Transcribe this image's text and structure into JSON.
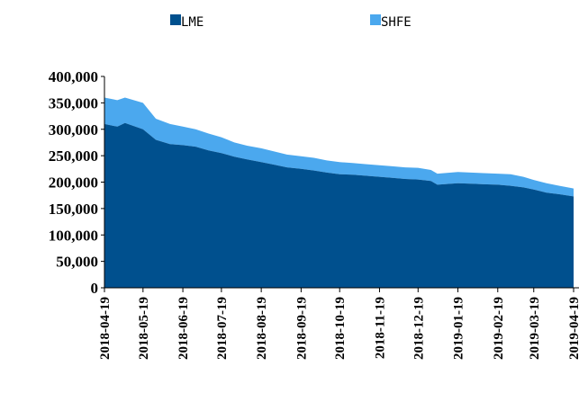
{
  "chart_data": {
    "type": "area",
    "stacked": true,
    "colors": {
      "LME": "#00508E",
      "SHFE": "#4BA8EE"
    },
    "legend": {
      "placement": "top",
      "items": [
        "LME",
        "SHFE"
      ]
    },
    "ylim": [
      0,
      400000
    ],
    "yticks": [
      "0",
      "50,000",
      "100,000",
      "150,000",
      "200,000",
      "250,000",
      "300,000",
      "350,000",
      "400,000"
    ],
    "xlim": [
      "2018-04-19",
      "2019-04-19"
    ],
    "xticks": [
      "2018-04-19",
      "2018-05-19",
      "2018-06-19",
      "2018-07-19",
      "2018-08-19",
      "2018-09-19",
      "2018-10-19",
      "2018-11-19",
      "2018-12-19",
      "2019-01-19",
      "2019-02-19",
      "2019-03-19",
      "2019-04-19"
    ],
    "grid": false,
    "x": [
      "2018-04-19",
      "2018-04-29",
      "2018-05-05",
      "2018-05-19",
      "2018-05-29",
      "2018-06-09",
      "2018-06-19",
      "2018-06-29",
      "2018-07-09",
      "2018-07-19",
      "2018-07-29",
      "2018-08-08",
      "2018-08-19",
      "2018-08-29",
      "2018-09-08",
      "2018-09-19",
      "2018-09-29",
      "2018-10-09",
      "2018-10-19",
      "2018-10-29",
      "2018-11-08",
      "2018-11-19",
      "2018-11-29",
      "2018-12-09",
      "2018-12-19",
      "2018-12-29",
      "2019-01-03",
      "2019-01-19",
      "2019-01-29",
      "2019-02-08",
      "2019-02-19",
      "2019-03-01",
      "2019-03-11",
      "2019-03-19",
      "2019-03-29",
      "2019-04-08",
      "2019-04-19"
    ],
    "series": [
      {
        "name": "LME",
        "values": [
          310000,
          305000,
          312000,
          300000,
          280000,
          272000,
          270000,
          267000,
          260000,
          255000,
          248000,
          243000,
          238000,
          233000,
          228000,
          225000,
          222000,
          218000,
          215000,
          214000,
          212000,
          210000,
          208000,
          206000,
          205000,
          202000,
          195000,
          198000,
          197000,
          196000,
          195000,
          193000,
          190000,
          186000,
          180000,
          177000,
          173000
        ]
      },
      {
        "name": "SHFE",
        "values": [
          50000,
          50000,
          48000,
          50000,
          40000,
          38000,
          35000,
          33000,
          32000,
          30000,
          27000,
          26000,
          26000,
          25000,
          24000,
          24000,
          24000,
          23000,
          23000,
          22000,
          22000,
          22000,
          22000,
          22000,
          22000,
          21000,
          21000,
          21000,
          21000,
          21000,
          21000,
          22000,
          20000,
          18000,
          18000,
          16000,
          15000
        ]
      }
    ]
  }
}
